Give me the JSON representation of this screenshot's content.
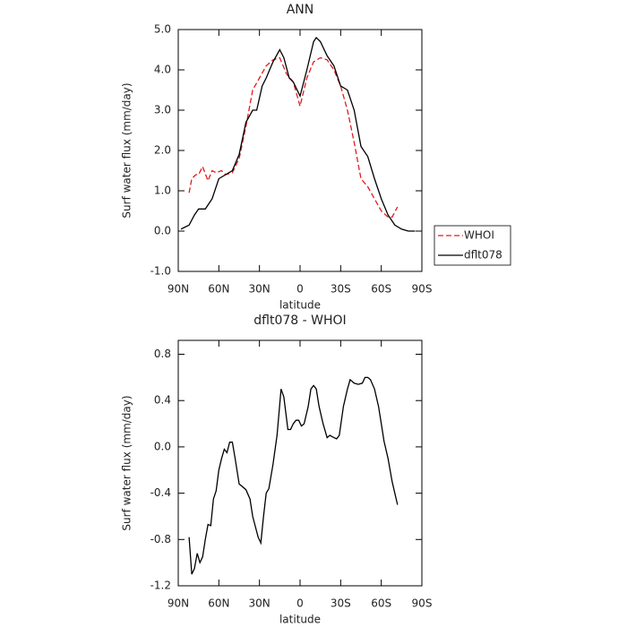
{
  "chart_data": [
    {
      "type": "line",
      "title": "ANN",
      "x_label": "latitude",
      "y_label": "Surf water flux (mm/day)",
      "xlim": [
        90,
        -90
      ],
      "ylim": [
        -1,
        5
      ],
      "xticks": [
        {
          "value": 90,
          "label": "90N"
        },
        {
          "value": 60,
          "label": "60N"
        },
        {
          "value": 30,
          "label": "30N"
        },
        0,
        {
          "value": -30,
          "label": "30S"
        },
        {
          "value": -60,
          "label": "60S"
        },
        {
          "value": -90,
          "label": "90S"
        }
      ],
      "yticks": [
        {
          "value": 5,
          "label": "5.0"
        },
        {
          "value": 4,
          "label": "4.0"
        },
        {
          "value": 3,
          "label": "3.0"
        },
        {
          "value": 2,
          "label": "2.0"
        },
        {
          "value": 1,
          "label": "1.0"
        },
        {
          "value": 0,
          "label": "0.0"
        },
        {
          "value": -1,
          "label": "-1.0"
        }
      ],
      "legend": "right",
      "series": [
        {
          "name": "WHOI",
          "color": "#e41a1c",
          "dashed": true,
          "x": [
            82,
            80,
            77,
            75,
            72,
            68,
            65,
            62,
            58,
            55,
            50,
            45,
            40,
            35,
            30,
            25,
            20,
            15,
            10,
            5,
            0,
            -5,
            -10,
            -15,
            -20,
            -25,
            -30,
            -35,
            -40,
            -45,
            -50,
            -55,
            -60,
            -65,
            -68,
            -72
          ],
          "values": [
            0.95,
            1.3,
            1.4,
            1.4,
            1.6,
            1.25,
            1.5,
            1.45,
            1.5,
            1.4,
            1.45,
            1.8,
            2.6,
            3.5,
            3.8,
            4.1,
            4.25,
            4.3,
            3.9,
            3.7,
            3.1,
            3.8,
            4.2,
            4.3,
            4.25,
            4.0,
            3.6,
            3.0,
            2.2,
            1.3,
            1.1,
            0.8,
            0.5,
            0.35,
            0.35,
            0.6
          ]
        },
        {
          "name": "dflt078",
          "color": "#000000",
          "dashed": false,
          "x": [
            88,
            85,
            82,
            78,
            75,
            70,
            65,
            60,
            55,
            50,
            45,
            40,
            35,
            32,
            28,
            25,
            20,
            15,
            12,
            8,
            5,
            0,
            -5,
            -10,
            -12,
            -15,
            -20,
            -25,
            -30,
            -35,
            -40,
            -45,
            -50,
            -55,
            -60,
            -65,
            -70,
            -75,
            -80,
            -85
          ],
          "values": [
            0.05,
            0.1,
            0.15,
            0.4,
            0.55,
            0.55,
            0.8,
            1.3,
            1.4,
            1.5,
            1.9,
            2.7,
            3.0,
            3.0,
            3.6,
            3.8,
            4.2,
            4.5,
            4.3,
            3.8,
            3.7,
            3.35,
            4.0,
            4.7,
            4.8,
            4.7,
            4.35,
            4.1,
            3.6,
            3.5,
            3.0,
            2.1,
            1.85,
            1.3,
            0.8,
            0.4,
            0.15,
            0.05,
            0.0,
            0.0
          ]
        }
      ]
    },
    {
      "type": "line",
      "title": "dflt078 - WHOI",
      "x_label": "latitude",
      "y_label": "Surf water flux (mm/day)",
      "xlim": [
        90,
        -90
      ],
      "ylim": [
        -1.2,
        0.92
      ],
      "xticks": [
        {
          "value": 90,
          "label": "90N"
        },
        {
          "value": 60,
          "label": "60N"
        },
        {
          "value": 30,
          "label": "30N"
        },
        0,
        {
          "value": -30,
          "label": "30S"
        },
        {
          "value": -60,
          "label": "60S"
        },
        {
          "value": -90,
          "label": "90S"
        }
      ],
      "yticks": [
        0.8,
        0.4,
        {
          "value": 0,
          "label": "0.0"
        },
        -0.4,
        -0.8,
        -1.2
      ],
      "series": [
        {
          "color": "#000000",
          "dashed": false,
          "x": [
            82,
            80,
            78,
            76,
            74,
            72,
            70,
            68,
            66,
            64,
            62,
            60,
            58,
            56,
            54,
            52,
            50,
            48,
            45,
            40,
            37,
            35,
            31,
            29,
            27,
            25,
            23,
            20,
            17,
            14,
            12,
            9,
            7,
            5,
            3,
            1,
            -1,
            -3,
            -6,
            -8,
            -10,
            -12,
            -14,
            -17,
            -20,
            -22,
            -25,
            -27,
            -29,
            -32,
            -35,
            -37,
            -40,
            -43,
            -46,
            -48,
            -50,
            -52,
            -55,
            -58,
            -60,
            -62,
            -65,
            -68,
            -72
          ],
          "values": [
            -0.78,
            -1.1,
            -1.05,
            -0.92,
            -1.0,
            -0.95,
            -0.8,
            -0.67,
            -0.68,
            -0.45,
            -0.38,
            -0.2,
            -0.1,
            -0.02,
            -0.05,
            0.04,
            0.04,
            -0.1,
            -0.32,
            -0.37,
            -0.45,
            -0.6,
            -0.78,
            -0.83,
            -0.6,
            -0.4,
            -0.36,
            -0.15,
            0.1,
            0.5,
            0.43,
            0.15,
            0.15,
            0.2,
            0.23,
            0.23,
            0.18,
            0.2,
            0.35,
            0.5,
            0.53,
            0.5,
            0.35,
            0.2,
            0.08,
            0.1,
            0.08,
            0.07,
            0.1,
            0.35,
            0.5,
            0.58,
            0.55,
            0.54,
            0.55,
            0.6,
            0.6,
            0.58,
            0.5,
            0.35,
            0.2,
            0.05,
            -0.1,
            -0.3,
            -0.5
          ]
        }
      ]
    }
  ]
}
